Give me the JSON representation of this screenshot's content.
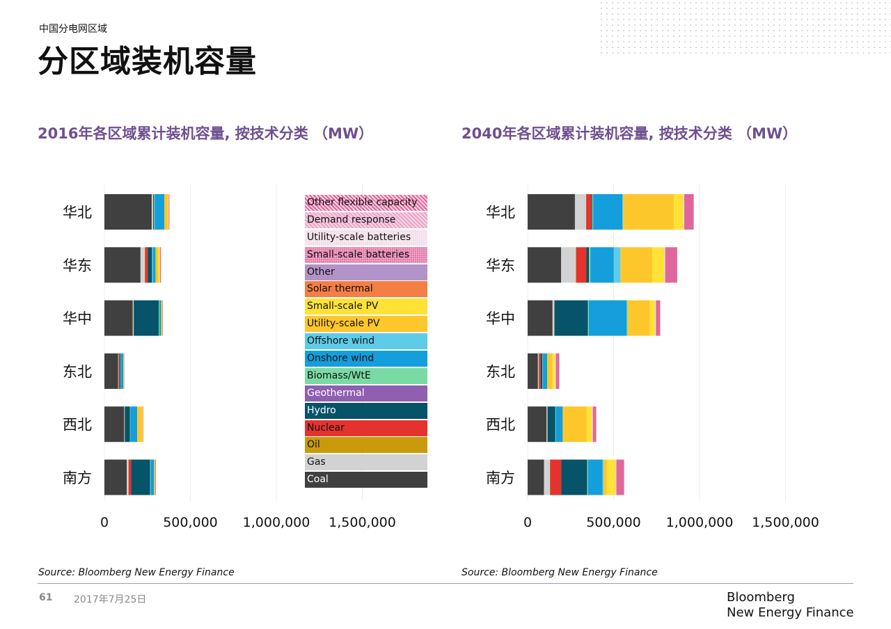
{
  "header": {
    "subtitle": "中国分电网区域",
    "title": "分区域装机容量"
  },
  "legend": [
    {
      "label": "Other flexible capacity",
      "color": "#e0679b",
      "pattern": "hatch"
    },
    {
      "label": "Demand response",
      "color": "#e8a6c4",
      "pattern": "hatch"
    },
    {
      "label": "Utility-scale batteries",
      "color": "#f2dce7",
      "pattern": "dots"
    },
    {
      "label": "Small-scale batteries",
      "color": "#e374a6",
      "pattern": "dots"
    },
    {
      "label": "Other",
      "color": "#b193c8",
      "pattern": ""
    },
    {
      "label": "Solar thermal",
      "color": "#f37f45",
      "pattern": ""
    },
    {
      "label": "Small-scale PV",
      "color": "#ffe235",
      "pattern": ""
    },
    {
      "label": "Utility-scale PV",
      "color": "#fdc72c",
      "pattern": ""
    },
    {
      "label": "Offshore wind",
      "color": "#5ecce8",
      "pattern": ""
    },
    {
      "label": "Onshore wind",
      "color": "#149edb",
      "pattern": ""
    },
    {
      "label": "Biomass/WtE",
      "color": "#79dba3",
      "pattern": ""
    },
    {
      "label": "Geothermal",
      "color": "#8f5fb2",
      "pattern": ""
    },
    {
      "label": "Hydro",
      "color": "#06536a",
      "pattern": ""
    },
    {
      "label": "Nuclear",
      "color": "#e4332e",
      "pattern": ""
    },
    {
      "label": "Oil",
      "color": "#c99a0a",
      "pattern": ""
    },
    {
      "label": "Gas",
      "color": "#d2d2d2",
      "pattern": ""
    },
    {
      "label": "Coal",
      "color": "#404041",
      "pattern": ""
    }
  ],
  "chart_data": [
    {
      "type": "bar",
      "orientation": "horizontal",
      "stacked": true,
      "title": "2016年各区域累计装机容量, 按技术分类 （MW）",
      "categories": [
        "华北",
        "华东",
        "华中",
        "东北",
        "西北",
        "南方"
      ],
      "xlim": [
        0,
        1500000
      ],
      "xticks": [
        "0",
        "500,000",
        "1,000,000",
        "1,500,000"
      ],
      "series": [
        {
          "name": "Coal",
          "values": [
            275000,
            210000,
            165000,
            80000,
            115000,
            130000
          ]
        },
        {
          "name": "Gas",
          "values": [
            8000,
            25000,
            5000,
            2000,
            3000,
            10000
          ]
        },
        {
          "name": "Oil",
          "values": [
            1000,
            2000,
            1000,
            1000,
            1000,
            1000
          ]
        },
        {
          "name": "Nuclear",
          "values": [
            0,
            15000,
            0,
            5000,
            0,
            15000
          ]
        },
        {
          "name": "Hydro",
          "values": [
            5000,
            25000,
            145000,
            5000,
            30000,
            110000
          ]
        },
        {
          "name": "Geothermal",
          "values": [
            0,
            0,
            0,
            0,
            0,
            0
          ]
        },
        {
          "name": "Biomass/WtE",
          "values": [
            4000,
            5000,
            4000,
            2000,
            2000,
            3000
          ]
        },
        {
          "name": "Onshore wind",
          "values": [
            55000,
            15000,
            10000,
            15000,
            40000,
            20000
          ]
        },
        {
          "name": "Offshore wind",
          "values": [
            1000,
            2000,
            0,
            0,
            0,
            0
          ]
        },
        {
          "name": "Utility-scale PV",
          "values": [
            20000,
            15000,
            5000,
            2000,
            30000,
            5000
          ]
        },
        {
          "name": "Small-scale PV",
          "values": [
            5000,
            10000,
            3000,
            1000,
            3000,
            2000
          ]
        },
        {
          "name": "Solar thermal",
          "values": [
            0,
            0,
            0,
            0,
            0,
            0
          ]
        },
        {
          "name": "Other",
          "values": [
            0,
            0,
            0,
            0,
            0,
            0
          ]
        },
        {
          "name": "Small-scale batteries",
          "values": [
            0,
            0,
            0,
            0,
            0,
            0
          ]
        },
        {
          "name": "Utility-scale batteries",
          "values": [
            0,
            0,
            0,
            0,
            0,
            0
          ]
        },
        {
          "name": "Demand response",
          "values": [
            0,
            0,
            0,
            0,
            0,
            0
          ]
        },
        {
          "name": "Other flexible capacity",
          "values": [
            4000,
            5000,
            2000,
            1000,
            1000,
            4000
          ]
        }
      ]
    },
    {
      "type": "bar",
      "orientation": "horizontal",
      "stacked": true,
      "title": "2040年各区域累计装机容量, 按技术分类 （MW）",
      "categories": [
        "华北",
        "华东",
        "华中",
        "东北",
        "西北",
        "南方"
      ],
      "xlim": [
        0,
        1500000
      ],
      "xticks": [
        "0",
        "500,000",
        "1,000,000",
        "1,500,000"
      ],
      "series": [
        {
          "name": "Coal",
          "values": [
            275000,
            195000,
            145000,
            60000,
            110000,
            95000
          ]
        },
        {
          "name": "Gas",
          "values": [
            65000,
            85000,
            10000,
            5000,
            5000,
            35000
          ]
        },
        {
          "name": "Oil",
          "values": [
            1000,
            2000,
            1000,
            1000,
            1000,
            1000
          ]
        },
        {
          "name": "Nuclear",
          "values": [
            30000,
            60000,
            0,
            10000,
            0,
            65000
          ]
        },
        {
          "name": "Hydro",
          "values": [
            5000,
            15000,
            195000,
            10000,
            45000,
            150000
          ]
        },
        {
          "name": "Geothermal",
          "values": [
            0,
            0,
            0,
            0,
            0,
            0
          ]
        },
        {
          "name": "Biomass/WtE",
          "values": [
            5000,
            8000,
            5000,
            3000,
            3000,
            5000
          ]
        },
        {
          "name": "Onshore wind",
          "values": [
            170000,
            135000,
            220000,
            25000,
            40000,
            85000
          ]
        },
        {
          "name": "Offshore wind",
          "values": [
            5000,
            40000,
            5000,
            0,
            0,
            5000
          ]
        },
        {
          "name": "Utility-scale PV",
          "values": [
            295000,
            185000,
            130000,
            30000,
            140000,
            20000
          ]
        },
        {
          "name": "Small-scale PV",
          "values": [
            55000,
            70000,
            30000,
            15000,
            30000,
            50000
          ]
        },
        {
          "name": "Solar thermal",
          "values": [
            0,
            0,
            0,
            0,
            0,
            0
          ]
        },
        {
          "name": "Other",
          "values": [
            0,
            0,
            0,
            0,
            0,
            0
          ]
        },
        {
          "name": "Small-scale batteries",
          "values": [
            0,
            0,
            0,
            0,
            0,
            0
          ]
        },
        {
          "name": "Utility-scale batteries",
          "values": [
            5000,
            5000,
            5000,
            5000,
            5000,
            5000
          ]
        },
        {
          "name": "Demand response",
          "values": [
            0,
            0,
            0,
            0,
            0,
            0
          ]
        },
        {
          "name": "Other flexible capacity",
          "values": [
            55000,
            70000,
            25000,
            20000,
            20000,
            45000
          ]
        }
      ]
    }
  ],
  "sources": [
    "Source: Bloomberg New Energy Finance",
    "Source: Bloomberg New Energy Finance"
  ],
  "footer": {
    "page": "61",
    "date": "2017年7月25日",
    "logo_line1": "Bloomberg",
    "logo_line2": "New Energy Finance"
  }
}
